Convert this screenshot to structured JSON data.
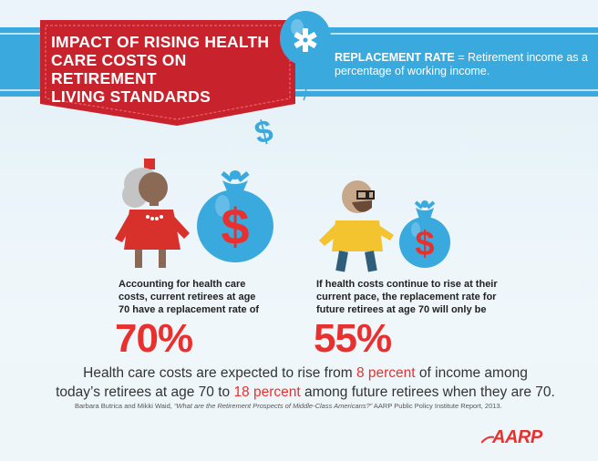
{
  "banner": {
    "title_line1": "IMPACT OF RISING HEALTH",
    "title_line2": "CARE COSTS ON RETIREMENT",
    "title_line3": "LIVING STANDARDS"
  },
  "definition": {
    "term": "REPLACEMENT RATE",
    "equals": " = ",
    "text": "Retirement income as a percentage of working income."
  },
  "current_retirees": {
    "caption_line1": "Accounting for health care",
    "caption_line2": "costs, current retirees at age",
    "caption_line3": "70 have a replacement rate of",
    "percent": "70%"
  },
  "future_retirees": {
    "caption_line1": "If health costs continue to rise at their",
    "caption_line2": "current pace, the replacement rate for",
    "caption_line3": "future retirees at age 70 will only be",
    "percent": "55%"
  },
  "summary": {
    "part1": "Health care costs are expected to rise from ",
    "hl1": "8 percent",
    "part2": " of income among",
    "part3": "today’s retirees at age 70 to ",
    "hl2": "18 percent",
    "part4": " among future retirees when they are 70."
  },
  "source": {
    "authors": "Barbara Butrica and Mikki Waid, ",
    "title": "“What are the Retirement Prospects of Middle-Class Americans?”",
    "publisher": " AARP Public Policy Institute Report, 2013."
  },
  "logo": {
    "text": "AARP"
  },
  "icons": {
    "float_dollar": "$",
    "bag_dollar": "$"
  },
  "colors": {
    "accent_blue": "#3aa9de",
    "accent_red": "#e8312f",
    "banner_red": "#c8232c"
  }
}
